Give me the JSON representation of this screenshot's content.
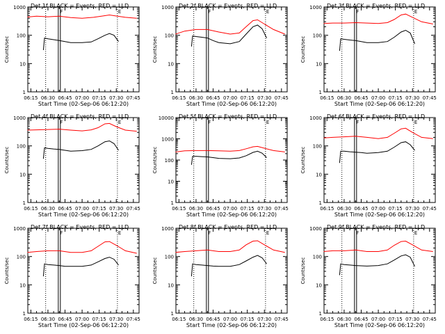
{
  "colors": {
    "background": "#ffffff",
    "axes": "#000000",
    "events": "#000000",
    "lld": "#ff0000"
  },
  "chart_data": [
    {
      "type": "line",
      "title": "Det 1f BLACK = Events, RED = LLD",
      "xlabel": "Start Time (02-Sep-06 06:12:20)",
      "ylabel": "Counts/sec",
      "yscale": "log",
      "ylim": [
        1,
        1000
      ],
      "xlim": [
        "06:12:20",
        "07:50:00"
      ],
      "x_ticks": [
        "06:15",
        "06:30",
        "06:45",
        "07:00",
        "07:15",
        "07:30",
        "07:45"
      ],
      "y_ticks": [
        "1",
        "10",
        "100",
        "1000"
      ],
      "markers": [
        {
          "label": "F",
          "time": "06:40",
          "style": "double-solid"
        },
        {
          "label": "E",
          "time": "07:31",
          "style": "dotted"
        }
      ],
      "extra_dotted": [
        "06:28"
      ],
      "series": [
        {
          "color": "red",
          "x": [
            "06:12",
            "06:20",
            "06:30",
            "06:40",
            "06:50",
            "07:00",
            "07:10",
            "07:18",
            "07:24",
            "07:30",
            "07:38",
            "07:48"
          ],
          "values": [
            440,
            470,
            450,
            470,
            420,
            400,
            430,
            480,
            520,
            480,
            430,
            400
          ]
        },
        {
          "color": "black",
          "x": [
            "06:26",
            "06:27",
            "06:30",
            "06:35",
            "06:40",
            "06:45",
            "06:50",
            "07:00",
            "07:08",
            "07:14",
            "07:20",
            "07:24",
            "07:28",
            "07:32"
          ],
          "values": [
            30,
            80,
            75,
            70,
            65,
            60,
            55,
            55,
            58,
            75,
            100,
            115,
            100,
            60
          ]
        }
      ]
    },
    {
      "type": "line",
      "title": "Det 2f BLACK = Events, RED = LLD",
      "xlabel": "Start Time (02-Sep-06 06:12:20)",
      "ylabel": "Counts/sec",
      "yscale": "log",
      "ylim": [
        1,
        1000
      ],
      "xlim": [
        "06:12:20",
        "07:50:00"
      ],
      "x_ticks": [
        "06:15",
        "06:30",
        "06:45",
        "07:00",
        "07:15",
        "07:30",
        "07:45"
      ],
      "y_ticks": [
        "1",
        "10",
        "100",
        "1000"
      ],
      "markers": [
        {
          "label": "F",
          "time": "06:40",
          "style": "double-solid"
        },
        {
          "label": "E",
          "time": "07:31",
          "style": "dotted"
        }
      ],
      "extra_dotted": [
        "06:28"
      ],
      "series": [
        {
          "color": "red",
          "x": [
            "06:12",
            "06:20",
            "06:30",
            "06:40",
            "06:50",
            "07:00",
            "07:08",
            "07:14",
            "07:20",
            "07:24",
            "07:30",
            "07:38",
            "07:48"
          ],
          "values": [
            110,
            140,
            160,
            160,
            130,
            110,
            120,
            200,
            330,
            350,
            250,
            160,
            110
          ]
        },
        {
          "color": "black",
          "x": [
            "06:26",
            "06:27",
            "06:30",
            "06:35",
            "06:40",
            "06:45",
            "06:50",
            "07:00",
            "07:08",
            "07:14",
            "07:20",
            "07:24",
            "07:28",
            "07:32"
          ],
          "values": [
            40,
            95,
            90,
            85,
            80,
            65,
            55,
            50,
            60,
            110,
            200,
            230,
            170,
            80
          ]
        }
      ]
    },
    {
      "type": "line",
      "title": "Det 3f BLACK = Events, RED = LLD",
      "xlabel": "Start Time (02-Sep-06 06:12:20)",
      "ylabel": "Counts/sec",
      "yscale": "log",
      "ylim": [
        1,
        1000
      ],
      "xlim": [
        "06:12:20",
        "07:50:00"
      ],
      "x_ticks": [
        "06:15",
        "06:30",
        "06:45",
        "07:00",
        "07:15",
        "07:30",
        "07:45"
      ],
      "y_ticks": [
        "1",
        "10",
        "100",
        "1000"
      ],
      "markers": [
        {
          "label": "F",
          "time": "06:40",
          "style": "double-solid"
        },
        {
          "label": "E",
          "time": "07:31",
          "style": "dotted"
        }
      ],
      "extra_dotted": [
        "06:28"
      ],
      "series": [
        {
          "color": "red",
          "x": [
            "06:12",
            "06:20",
            "06:30",
            "06:40",
            "06:50",
            "07:00",
            "07:08",
            "07:14",
            "07:20",
            "07:24",
            "07:30",
            "07:38",
            "07:48"
          ],
          "values": [
            260,
            270,
            270,
            280,
            270,
            260,
            280,
            360,
            520,
            560,
            430,
            300,
            250
          ]
        },
        {
          "color": "black",
          "x": [
            "06:26",
            "06:27",
            "06:30",
            "06:35",
            "06:40",
            "06:45",
            "06:50",
            "07:00",
            "07:08",
            "07:14",
            "07:20",
            "07:24",
            "07:28",
            "07:32"
          ],
          "values": [
            28,
            75,
            72,
            68,
            65,
            60,
            55,
            55,
            60,
            85,
            130,
            150,
            120,
            50
          ]
        }
      ]
    },
    {
      "type": "line",
      "title": "Det 4f BLACK = Events, RED = LLD",
      "xlabel": "Start Time (02-Sep-06 06:12:20)",
      "ylabel": "Counts/sec",
      "yscale": "log",
      "ylim": [
        1,
        1000
      ],
      "xlim": [
        "06:12:20",
        "07:50:00"
      ],
      "x_ticks": [
        "06:15",
        "06:30",
        "06:45",
        "07:00",
        "07:15",
        "07:30",
        "07:45"
      ],
      "y_ticks": [
        "1",
        "10",
        "100",
        "1000"
      ],
      "markers": [
        {
          "label": "F",
          "time": "06:40",
          "style": "double-solid"
        },
        {
          "label": "E",
          "time": "07:31",
          "style": "dotted"
        }
      ],
      "extra_dotted": [
        "06:28"
      ],
      "series": [
        {
          "color": "red",
          "x": [
            "06:12",
            "06:20",
            "06:30",
            "06:40",
            "06:50",
            "07:00",
            "07:08",
            "07:14",
            "07:20",
            "07:24",
            "07:30",
            "07:38",
            "07:48"
          ],
          "values": [
            360,
            370,
            380,
            390,
            360,
            340,
            370,
            440,
            600,
            620,
            480,
            360,
            330
          ]
        },
        {
          "color": "black",
          "x": [
            "06:26",
            "06:27",
            "06:30",
            "06:35",
            "06:40",
            "06:45",
            "06:50",
            "07:00",
            "07:08",
            "07:14",
            "07:20",
            "07:24",
            "07:28",
            "07:32"
          ],
          "values": [
            35,
            85,
            82,
            78,
            75,
            70,
            65,
            68,
            75,
            100,
            140,
            150,
            120,
            70
          ]
        }
      ]
    },
    {
      "type": "line",
      "title": "Det 5f BLACK = Events, RED = LLD",
      "xlabel": "Start Time (02-Sep-06 06:12:20)",
      "ylabel": "Counts/sec",
      "yscale": "log",
      "ylim": [
        1,
        10000
      ],
      "xlim": [
        "06:12:20",
        "07:50:00"
      ],
      "x_ticks": [
        "06:15",
        "06:30",
        "06:45",
        "07:00",
        "07:15",
        "07:30",
        "07:45"
      ],
      "y_ticks": [
        "1",
        "10",
        "100",
        "1000",
        "10000"
      ],
      "markers": [
        {
          "label": "F",
          "time": "06:40",
          "style": "double-solid"
        },
        {
          "label": "E",
          "time": "07:31",
          "style": "dotted"
        }
      ],
      "extra_dotted": [
        "06:28"
      ],
      "series": [
        {
          "color": "red",
          "x": [
            "06:12",
            "06:20",
            "06:30",
            "06:40",
            "06:50",
            "07:00",
            "07:08",
            "07:14",
            "07:20",
            "07:24",
            "07:30",
            "07:38",
            "07:48"
          ],
          "values": [
            240,
            270,
            280,
            280,
            270,
            260,
            280,
            340,
            420,
            440,
            360,
            280,
            240
          ]
        },
        {
          "color": "black",
          "x": [
            "06:26",
            "06:27",
            "06:30",
            "06:35",
            "06:40",
            "06:45",
            "06:50",
            "07:00",
            "07:08",
            "07:14",
            "07:20",
            "07:24",
            "07:28",
            "07:32"
          ],
          "values": [
            60,
            150,
            150,
            145,
            140,
            130,
            120,
            115,
            125,
            160,
            230,
            260,
            210,
            130
          ]
        }
      ]
    },
    {
      "type": "line",
      "title": "Det 6f BLACK = Events, RED = LLD",
      "xlabel": "Start Time (02-Sep-06 06:12:20)",
      "ylabel": "Counts/sec",
      "yscale": "log",
      "ylim": [
        1,
        1000
      ],
      "xlim": [
        "06:12:20",
        "07:50:00"
      ],
      "x_ticks": [
        "06:15",
        "06:30",
        "06:45",
        "07:00",
        "07:15",
        "07:30",
        "07:45"
      ],
      "y_ticks": [
        "1",
        "10",
        "100",
        "1000"
      ],
      "markers": [
        {
          "label": "F",
          "time": "06:40",
          "style": "double-solid"
        },
        {
          "label": "E",
          "time": "07:31",
          "style": "dotted"
        }
      ],
      "extra_dotted": [
        "06:28"
      ],
      "series": [
        {
          "color": "red",
          "x": [
            "06:12",
            "06:20",
            "06:30",
            "06:40",
            "06:50",
            "07:00",
            "07:08",
            "07:14",
            "07:20",
            "07:24",
            "07:30",
            "07:38",
            "07:48"
          ],
          "values": [
            190,
            200,
            210,
            220,
            200,
            180,
            200,
            280,
            400,
            420,
            300,
            200,
            180
          ]
        },
        {
          "color": "black",
          "x": [
            "06:26",
            "06:27",
            "06:30",
            "06:35",
            "06:40",
            "06:45",
            "06:50",
            "07:00",
            "07:08",
            "07:14",
            "07:20",
            "07:24",
            "07:28",
            "07:32"
          ],
          "values": [
            25,
            65,
            65,
            62,
            60,
            58,
            55,
            58,
            65,
            90,
            130,
            140,
            110,
            70
          ]
        }
      ]
    },
    {
      "type": "line",
      "title": "Det 7f BLACK = Events, RED = LLD",
      "xlabel": "Start Time (02-Sep-06 06:12:20)",
      "ylabel": "Counts/sec",
      "yscale": "log",
      "ylim": [
        1,
        1000
      ],
      "xlim": [
        "06:12:20",
        "07:50:00"
      ],
      "x_ticks": [
        "06:15",
        "06:30",
        "06:45",
        "07:00",
        "07:15",
        "07:30",
        "07:45"
      ],
      "y_ticks": [
        "1",
        "10",
        "100",
        "1000"
      ],
      "markers": [
        {
          "label": "F",
          "time": "06:40",
          "style": "double-solid"
        },
        {
          "label": "E",
          "time": "07:31",
          "style": "dotted"
        }
      ],
      "extra_dotted": [
        "06:28"
      ],
      "series": [
        {
          "color": "red",
          "x": [
            "06:12",
            "06:20",
            "06:30",
            "06:40",
            "06:50",
            "07:00",
            "07:08",
            "07:14",
            "07:20",
            "07:24",
            "07:30",
            "07:38",
            "07:48"
          ],
          "values": [
            140,
            150,
            160,
            160,
            140,
            140,
            160,
            230,
            330,
            340,
            250,
            160,
            130
          ]
        },
        {
          "color": "black",
          "x": [
            "06:26",
            "06:27",
            "06:30",
            "06:35",
            "06:40",
            "06:45",
            "06:50",
            "07:00",
            "07:08",
            "07:14",
            "07:20",
            "07:24",
            "07:28",
            "07:32"
          ],
          "values": [
            20,
            55,
            52,
            50,
            48,
            45,
            45,
            45,
            50,
            65,
            85,
            95,
            80,
            50
          ]
        }
      ]
    },
    {
      "type": "line",
      "title": "Det 8f BLACK = Events, RED = LLD",
      "xlabel": "Start Time (02-Sep-06 06:12:20)",
      "ylabel": "Counts/sec",
      "yscale": "log",
      "ylim": [
        1,
        1000
      ],
      "xlim": [
        "06:12:20",
        "07:50:00"
      ],
      "x_ticks": [
        "06:15",
        "06:30",
        "06:45",
        "07:00",
        "07:15",
        "07:30",
        "07:45"
      ],
      "y_ticks": [
        "1",
        "10",
        "100",
        "1000"
      ],
      "markers": [
        {
          "label": "F",
          "time": "06:40",
          "style": "double-solid"
        },
        {
          "label": "E",
          "time": "07:31",
          "style": "dotted"
        }
      ],
      "extra_dotted": [
        "06:28"
      ],
      "series": [
        {
          "color": "red",
          "x": [
            "06:12",
            "06:20",
            "06:30",
            "06:40",
            "06:50",
            "07:00",
            "07:08",
            "07:14",
            "07:20",
            "07:24",
            "07:30",
            "07:38",
            "07:48"
          ],
          "values": [
            140,
            150,
            160,
            170,
            150,
            150,
            170,
            260,
            350,
            360,
            260,
            170,
            140
          ]
        },
        {
          "color": "black",
          "x": [
            "06:26",
            "06:27",
            "06:30",
            "06:35",
            "06:40",
            "06:45",
            "06:50",
            "07:00",
            "07:08",
            "07:14",
            "07:20",
            "07:24",
            "07:28",
            "07:32"
          ],
          "values": [
            20,
            55,
            52,
            50,
            48,
            46,
            45,
            45,
            52,
            70,
            95,
            110,
            90,
            55
          ]
        }
      ]
    },
    {
      "type": "line",
      "title": "Det 9f BLACK = Events, RED = LLD",
      "xlabel": "Start Time (02-Sep-06 06:12:20)",
      "ylabel": "Counts/sec",
      "yscale": "log",
      "ylim": [
        1,
        1000
      ],
      "xlim": [
        "06:12:20",
        "07:50:00"
      ],
      "x_ticks": [
        "06:15",
        "06:30",
        "06:45",
        "07:00",
        "07:15",
        "07:30",
        "07:45"
      ],
      "y_ticks": [
        "1",
        "10",
        "100",
        "1000"
      ],
      "markers": [
        {
          "label": "F",
          "time": "06:40",
          "style": "double-solid"
        },
        {
          "label": "E",
          "time": "07:31",
          "style": "dotted"
        }
      ],
      "extra_dotted": [
        "06:28"
      ],
      "series": [
        {
          "color": "red",
          "x": [
            "06:12",
            "06:20",
            "06:30",
            "06:40",
            "06:50",
            "07:00",
            "07:08",
            "07:14",
            "07:20",
            "07:24",
            "07:30",
            "07:38",
            "07:48"
          ],
          "values": [
            150,
            160,
            160,
            170,
            150,
            150,
            170,
            250,
            340,
            350,
            260,
            170,
            150
          ]
        },
        {
          "color": "black",
          "x": [
            "06:26",
            "06:27",
            "06:30",
            "06:35",
            "06:40",
            "06:45",
            "06:50",
            "07:00",
            "07:08",
            "07:14",
            "07:20",
            "07:24",
            "07:28",
            "07:32"
          ],
          "values": [
            22,
            55,
            52,
            50,
            48,
            47,
            46,
            48,
            55,
            75,
            105,
            115,
            95,
            45
          ]
        }
      ]
    }
  ]
}
